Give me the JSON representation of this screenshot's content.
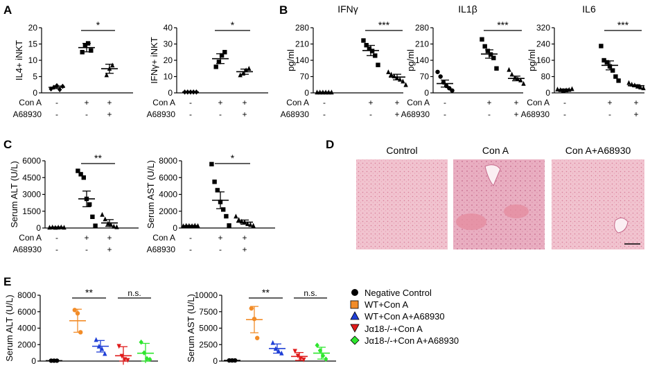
{
  "panel_labels": {
    "A": "A",
    "B": "B",
    "C": "C",
    "D": "D",
    "E": "E"
  },
  "treatment_labels": {
    "cona": "Con A",
    "a68930": "A68930"
  },
  "treatment_rows": {
    "cona": [
      "-",
      "+",
      "+"
    ],
    "a68930": [
      "-",
      "-",
      "+"
    ]
  },
  "histology": {
    "titles": [
      "Control",
      "Con A",
      "Con A+A68930"
    ]
  },
  "legend": {
    "items": [
      {
        "label": "Negative Control",
        "color": "#000000",
        "marker": "circle"
      },
      {
        "label": "WT+Con A",
        "color": "#f28c28",
        "marker": "square"
      },
      {
        "label": "WT+Con A+A68930",
        "color": "#1f3fd6",
        "marker": "triangle-up"
      },
      {
        "label": "Jα18-/-+Con A",
        "color": "#e01b1b",
        "marker": "triangle-down"
      },
      {
        "label": "Jα18-/-+Con A+A68930",
        "color": "#2ee62e",
        "marker": "diamond"
      }
    ]
  },
  "chart_data": [
    {
      "id": "A1",
      "type": "scatter",
      "ylabel": "IL4+ iNKT",
      "yticks": [
        0,
        5,
        10,
        15,
        20
      ],
      "ylim": [
        0,
        20
      ],
      "significance": [
        {
          "from": 1,
          "to": 2,
          "label": "*"
        }
      ],
      "groups": [
        {
          "marker": "diamond",
          "values": [
            1.2,
            1.7,
            2.2,
            1.0,
            2.0
          ],
          "mean": 1.7,
          "sem": 0.4
        },
        {
          "marker": "square",
          "values": [
            12.5,
            14.5,
            15.2,
            13.0
          ],
          "mean": 13.9,
          "sem": 1.3
        },
        {
          "marker": "triangle-up",
          "values": [
            5.5,
            7.5,
            8.5
          ],
          "mean": 7.4,
          "sem": 1.4
        }
      ]
    },
    {
      "id": "A2",
      "type": "scatter",
      "ylabel": "IFNγ+ iNKT",
      "yticks": [
        0,
        10,
        20,
        30,
        40
      ],
      "ylim": [
        0,
        40
      ],
      "significance": [
        {
          "from": 1,
          "to": 2,
          "label": "*"
        }
      ],
      "groups": [
        {
          "marker": "diamond",
          "values": [
            0.5,
            0.5,
            0.5,
            0.5,
            0.5
          ],
          "mean": 0.5,
          "sem": 0.1
        },
        {
          "marker": "square",
          "values": [
            16,
            19,
            23,
            25
          ],
          "mean": 21,
          "sem": 3
        },
        {
          "marker": "triangle-up",
          "values": [
            11,
            12,
            14,
            15
          ],
          "mean": 13,
          "sem": 1.6
        }
      ]
    },
    {
      "id": "B1",
      "type": "scatter",
      "title": "IFNγ",
      "ylabel": "pg/ml",
      "yticks": [
        0,
        70,
        140,
        210,
        280
      ],
      "ylim": [
        0,
        280
      ],
      "significance": [
        {
          "from": 1,
          "to": 2,
          "label": "***"
        }
      ],
      "groups": [
        {
          "marker": "triangle-up",
          "values": [
            3,
            3,
            3,
            3,
            3,
            3
          ],
          "mean": 3,
          "sem": 0.5
        },
        {
          "marker": "square",
          "values": [
            225,
            205,
            190,
            180,
            160,
            120
          ],
          "mean": 182,
          "sem": 22
        },
        {
          "marker": "triangle-up",
          "values": [
            90,
            80,
            72,
            65,
            58,
            50,
            35
          ],
          "mean": 68,
          "sem": 12
        }
      ]
    },
    {
      "id": "B2",
      "type": "scatter",
      "title": "IL1β",
      "ylabel": "pg/ml",
      "yticks": [
        0,
        70,
        140,
        210,
        280
      ],
      "ylim": [
        0,
        280
      ],
      "significance": [
        {
          "from": 1,
          "to": 2,
          "label": "***"
        }
      ],
      "groups": [
        {
          "marker": "circle",
          "values": [
            90,
            70,
            45,
            30,
            20,
            10
          ],
          "mean": 40,
          "sem": 15
        },
        {
          "marker": "square",
          "values": [
            230,
            200,
            180,
            165,
            150,
            105
          ],
          "mean": 167,
          "sem": 18
        },
        {
          "marker": "triangle-up",
          "values": [
            100,
            80,
            65,
            60,
            55,
            40
          ],
          "mean": 62,
          "sem": 10
        }
      ]
    },
    {
      "id": "B3",
      "type": "scatter",
      "title": "IL6",
      "ylabel": "pg/ml",
      "yticks": [
        0,
        80,
        160,
        240,
        320
      ],
      "ylim": [
        0,
        320
      ],
      "significance": [
        {
          "from": 1,
          "to": 2,
          "label": "***"
        }
      ],
      "groups": [
        {
          "marker": "triangle-up",
          "values": [
            18,
            15,
            12,
            14,
            16,
            20
          ],
          "mean": 16,
          "sem": 3
        },
        {
          "marker": "square",
          "values": [
            230,
            160,
            150,
            130,
            110,
            80,
            60
          ],
          "mean": 135,
          "sem": 22
        },
        {
          "marker": "triangle-up",
          "values": [
            50,
            42,
            38,
            32,
            28,
            24
          ],
          "mean": 35,
          "sem": 5
        }
      ]
    },
    {
      "id": "C1",
      "type": "scatter",
      "ylabel": "Serum ALT (U/L)",
      "yticks": [
        0,
        1500,
        3000,
        4500,
        6000
      ],
      "ylim": [
        0,
        6000
      ],
      "significance": [
        {
          "from": 1,
          "to": 2,
          "label": "**"
        }
      ],
      "groups": [
        {
          "marker": "triangle-up",
          "values": [
            60,
            80,
            50,
            70,
            90,
            60
          ],
          "mean": 70,
          "sem": 30
        },
        {
          "marker": "square",
          "values": [
            5100,
            4800,
            4500,
            2600,
            2100,
            1000,
            200
          ],
          "mean": 2600,
          "sem": 700
        },
        {
          "marker": "triangle-up",
          "values": [
            1200,
            800,
            400,
            300,
            150,
            100
          ],
          "mean": 450,
          "sem": 300
        }
      ]
    },
    {
      "id": "C2",
      "type": "scatter",
      "ylabel": "Serum AST (U/L)",
      "yticks": [
        0,
        2000,
        4000,
        6000,
        8000
      ],
      "ylim": [
        0,
        8000
      ],
      "significance": [
        {
          "from": 1,
          "to": 2,
          "label": "*"
        }
      ],
      "groups": [
        {
          "marker": "triangle-up",
          "values": [
            250,
            300,
            280,
            260,
            310,
            270
          ],
          "mean": 280,
          "sem": 40
        },
        {
          "marker": "square",
          "values": [
            7600,
            5500,
            4500,
            3100,
            2200,
            1400,
            300
          ],
          "mean": 3300,
          "sem": 1000
        },
        {
          "marker": "triangle-up",
          "values": [
            1400,
            1000,
            800,
            700,
            500,
            400,
            300
          ],
          "mean": 700,
          "sem": 250
        }
      ]
    },
    {
      "id": "E1",
      "type": "scatter",
      "ylabel": "Serum ALT (U/L)",
      "yticks": [
        0,
        2000,
        4000,
        6000,
        8000
      ],
      "ylim": [
        0,
        8000
      ],
      "significance": [
        {
          "from": 1,
          "to": 2,
          "label": "**"
        },
        {
          "from": 3,
          "to": 4,
          "label": "n.s."
        }
      ],
      "groups": [
        {
          "marker": "circle",
          "color": "#000000",
          "values": [
            50,
            50,
            50
          ],
          "mean": 50,
          "sem": 0
        },
        {
          "marker": "circle",
          "color": "#f28c28",
          "values": [
            6200,
            5800,
            3500
          ],
          "mean": 4900,
          "sem": 1400
        },
        {
          "marker": "triangle-up",
          "color": "#1f3fd6",
          "values": [
            2600,
            1800,
            1500,
            900
          ],
          "mean": 1800,
          "sem": 700
        },
        {
          "marker": "triangle-down",
          "color": "#e01b1b",
          "values": [
            1800,
            600,
            200,
            100
          ],
          "mean": 650,
          "sem": 1100
        },
        {
          "marker": "diamond",
          "color": "#2ee62e",
          "values": [
            2300,
            1000,
            300,
            200
          ],
          "mean": 950,
          "sem": 1200
        }
      ]
    },
    {
      "id": "E2",
      "type": "scatter",
      "ylabel": "Serum AST (U/L)",
      "yticks": [
        0,
        2500,
        5000,
        7500,
        10000
      ],
      "ylim": [
        0,
        10000
      ],
      "significance": [
        {
          "from": 1,
          "to": 2,
          "label": "**"
        },
        {
          "from": 3,
          "to": 4,
          "label": "n.s."
        }
      ],
      "groups": [
        {
          "marker": "circle",
          "color": "#000000",
          "values": [
            100,
            100,
            100
          ],
          "mean": 100,
          "sem": 0
        },
        {
          "marker": "circle",
          "color": "#f28c28",
          "values": [
            8000,
            6400,
            3500
          ],
          "mean": 6300,
          "sem": 2000
        },
        {
          "marker": "triangle-up",
          "color": "#1f3fd6",
          "values": [
            2800,
            1900,
            1500,
            1200
          ],
          "mean": 1900,
          "sem": 700
        },
        {
          "marker": "triangle-down",
          "color": "#e01b1b",
          "values": [
            1500,
            800,
            400,
            200
          ],
          "mean": 700,
          "sem": 600
        },
        {
          "marker": "diamond",
          "color": "#2ee62e",
          "values": [
            2400,
            1600,
            800,
            300
          ],
          "mean": 1200,
          "sem": 900
        }
      ]
    }
  ]
}
